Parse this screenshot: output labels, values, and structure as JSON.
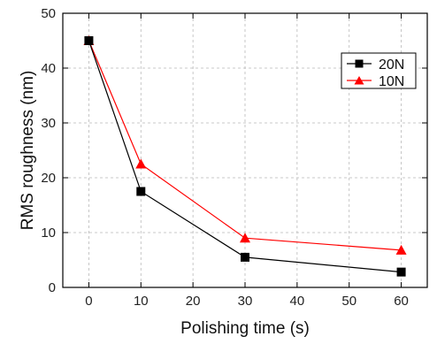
{
  "chart_data": {
    "type": "line",
    "xlabel": "Polishing time (s)",
    "ylabel": "RMS roughness (nm)",
    "xlim": [
      -5,
      65
    ],
    "ylim": [
      0,
      50
    ],
    "xticks": [
      0,
      10,
      20,
      30,
      40,
      50,
      60
    ],
    "yticks": [
      0,
      10,
      20,
      30,
      40,
      50
    ],
    "grid": true,
    "legend_position": "top-right",
    "series": [
      {
        "name": "20N",
        "color": "#000000",
        "marker": "square",
        "x": [
          0,
          10,
          30,
          60
        ],
        "y": [
          45,
          17.5,
          5.5,
          2.8
        ]
      },
      {
        "name": "10N",
        "color": "#ff0000",
        "marker": "triangle",
        "x": [
          0,
          10,
          30,
          60
        ],
        "y": [
          45,
          22.5,
          9,
          6.8
        ]
      }
    ]
  }
}
